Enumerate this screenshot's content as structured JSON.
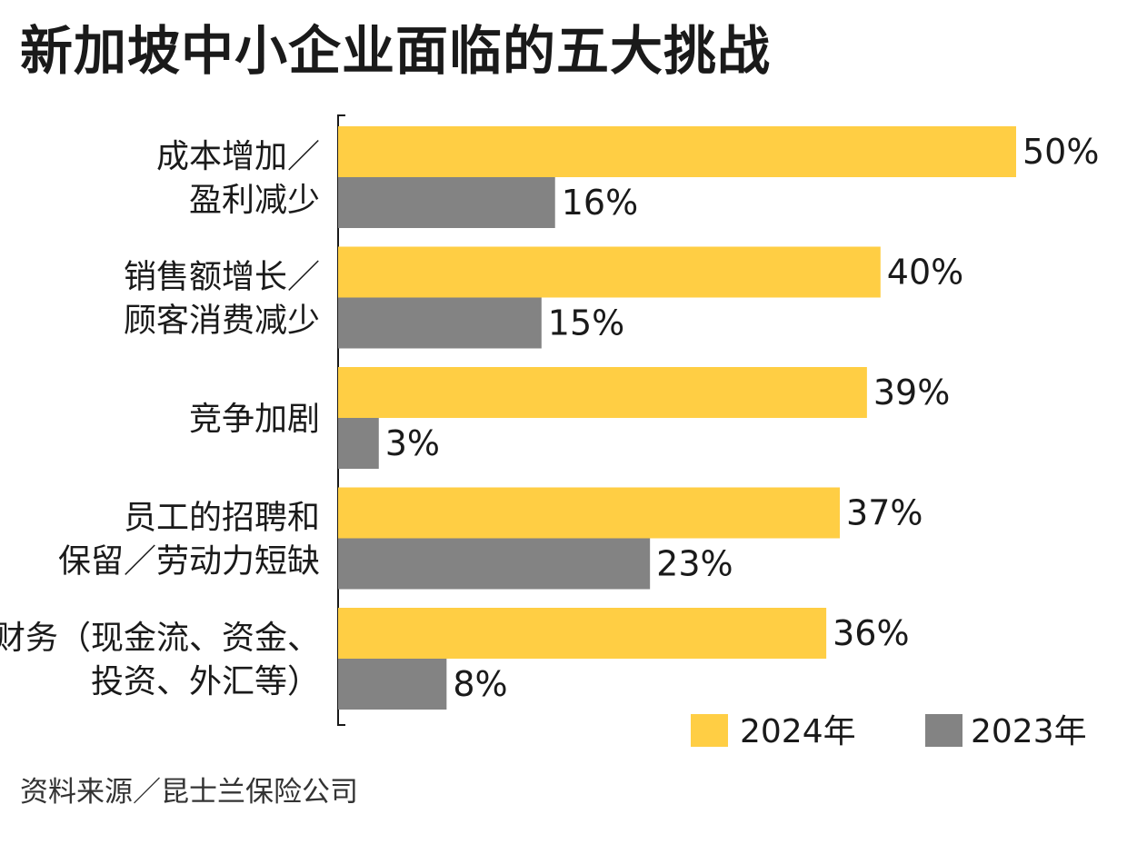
{
  "chart_data": {
    "type": "bar",
    "orientation": "horizontal",
    "title": "新加坡中小企业面临的五大挑战",
    "categories": [
      [
        "成本增加／",
        "盈利减少"
      ],
      [
        "销售额增长／",
        "顾客消费减少"
      ],
      [
        "竞争加剧"
      ],
      [
        "员工的招聘和",
        "保留／劳动力短缺"
      ],
      [
        "财务（现金流、资金、",
        "投资、外汇等）"
      ]
    ],
    "series": [
      {
        "name": "2024年",
        "color": "#FFCE44",
        "values": [
          50,
          40,
          39,
          37,
          36
        ]
      },
      {
        "name": "2023年",
        "color": "#838383",
        "values": [
          16,
          15,
          3,
          23,
          8
        ]
      }
    ],
    "value_suffix": "%",
    "xlim": [
      0,
      50
    ],
    "grid": false,
    "legend": "bottom-right",
    "source": "资料来源／昆士兰保险公司"
  }
}
